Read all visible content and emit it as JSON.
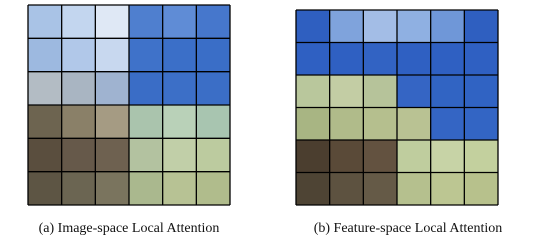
{
  "figure": {
    "panels": [
      {
        "caption": "(a) Image-space Local Attention"
      },
      {
        "caption": "(b) Feature-space Local Attention"
      }
    ]
  }
}
